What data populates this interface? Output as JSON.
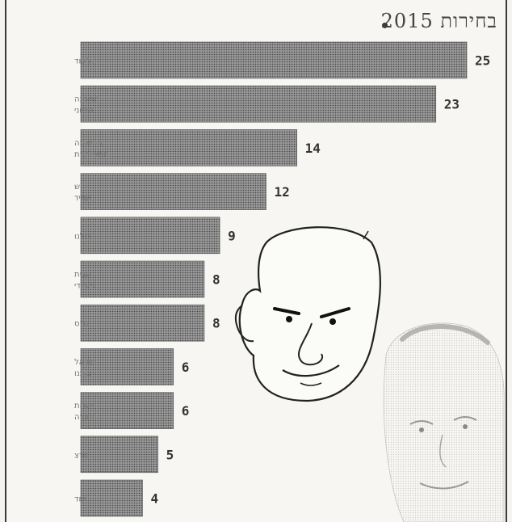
{
  "header": {
    "title": "בחירות 2015"
  },
  "chart_data": {
    "type": "bar",
    "orientation": "horizontal",
    "title": "בחירות 2015",
    "categories": [
      [
        "הליכוד"
      ],
      [
        "המחנה",
        "הציוני"
      ],
      [
        "הרשימה",
        "המשותפת"
      ],
      [
        "יש",
        "עתיד"
      ],
      [
        "כולנו"
      ],
      [
        "הבית",
        "היהודי"
      ],
      [
        "ש\"ס"
      ],
      [
        "ישראל",
        "ביתנו"
      ],
      [
        "יהדות",
        "התורה"
      ],
      [
        "מרצ"
      ],
      [
        "יחד"
      ]
    ],
    "values": [
      25,
      23,
      14,
      12,
      9,
      8,
      8,
      6,
      6,
      5,
      4
    ],
    "xlim": [
      0,
      25
    ],
    "grid": false,
    "legend": "none"
  },
  "illustrations": [
    "netanyahu-caricature-icon",
    "herzog-caricature-icon"
  ]
}
